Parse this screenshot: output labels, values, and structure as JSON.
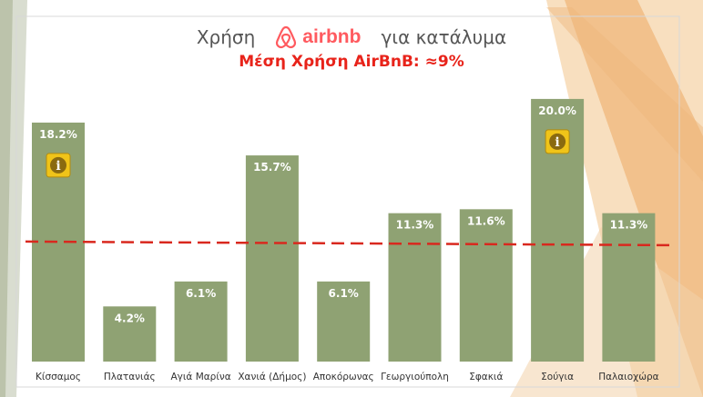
{
  "header": {
    "title_before": "Χρήση",
    "brand_name": "airbnb",
    "brand_icon": "airbnb-logo-icon",
    "title_after": "για κατάλυμα",
    "subtitle": "Μέση Χρήση AirBnB: ≈9%"
  },
  "colors": {
    "bar": "#8fa273",
    "reference_line": "#d9281e",
    "brand": "#ff5a5f",
    "info_badge": "#f0c419",
    "label_text": "#ffffff"
  },
  "chart_data": {
    "type": "bar",
    "categories": [
      "Κίσσαμος",
      "Πλατανιάς",
      "Αγιά Μαρίνα",
      "Χανιά (Δήμος)",
      "Αποκόρωνας",
      "Γεωργιούπολη",
      "Σφακιά",
      "Σούγια",
      "Παλαιοχώρα"
    ],
    "values": [
      18.2,
      4.2,
      6.1,
      15.7,
      6.1,
      11.3,
      11.6,
      20.0,
      11.3
    ],
    "value_labels": [
      "18.2%",
      "4.2%",
      "6.1%",
      "15.7%",
      "6.1%",
      "11.3%",
      "11.6%",
      "20.0%",
      "11.3%"
    ],
    "info_badges": [
      {
        "category": "Κίσσαμος",
        "icon": "info-icon",
        "text": "i"
      },
      {
        "category": "Σούγια",
        "icon": "info-icon",
        "text": "i"
      }
    ],
    "reference_line": {
      "value": 9,
      "style": "dashed"
    },
    "ylim": [
      0,
      22
    ],
    "grid": false,
    "legend": "none",
    "xlabel": "",
    "ylabel": ""
  }
}
